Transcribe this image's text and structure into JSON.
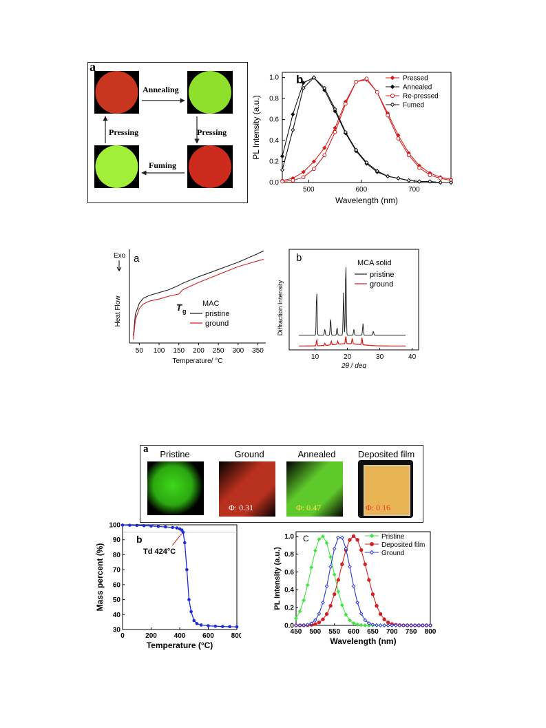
{
  "fig1": {
    "panel_a": {
      "label": "a",
      "arrows": {
        "top": "Annealing",
        "right": "Pressing",
        "bottom": "Fuming",
        "left": "Pressing"
      },
      "colors": {
        "red": "#c8361f",
        "green": "#8fe02a",
        "dark_red": "#cc2a1c",
        "bright_green": "#a2ef3a"
      }
    },
    "panel_b_label": "b"
  },
  "fig2": {
    "panel_a": {
      "label": "a",
      "exo": "Exo",
      "tg_main": "T",
      "tg_sub": "g"
    },
    "panel_b_label": "b"
  },
  "fig3": {
    "panel_a": {
      "label": "a",
      "photos": [
        {
          "title": "Pristine",
          "phi": "",
          "color": "#3fd61a"
        },
        {
          "title": "Ground",
          "phi": "Φ: 0.31",
          "color": "#b8301e"
        },
        {
          "title": "Annealed",
          "phi": "Φ: 0.47",
          "color": "#5fc82a"
        },
        {
          "title": "Deposited film",
          "phi": "Φ: 0.16",
          "color": "#e8b454"
        }
      ]
    },
    "panel_b": {
      "label": "b",
      "annotation": "Td 424°C"
    },
    "panel_c_label": "C"
  },
  "chart_data": [
    {
      "type": "line",
      "xlabel": "Wavelength (nm)",
      "ylabel": "PL Intensity (a.u.)",
      "xlim": [
        450,
        770
      ],
      "ylim": [
        0,
        1.05
      ],
      "xticks": [
        500,
        600,
        700
      ],
      "yticks": [
        0.0,
        0.2,
        0.4,
        0.6,
        0.8,
        1.0
      ],
      "legend_position": "top-right",
      "x": [
        450,
        470,
        490,
        510,
        530,
        550,
        570,
        590,
        610,
        630,
        650,
        670,
        690,
        710,
        730,
        750,
        770
      ],
      "series": [
        {
          "name": "Pressed",
          "color": "#d42020",
          "marker": "filled-diamond",
          "values": [
            0.02,
            0.04,
            0.1,
            0.2,
            0.33,
            0.52,
            0.77,
            0.96,
            0.98,
            0.86,
            0.66,
            0.45,
            0.28,
            0.16,
            0.09,
            0.05,
            0.03
          ]
        },
        {
          "name": "Annealed",
          "color": "#111111",
          "marker": "filled-diamond",
          "values": [
            0.25,
            0.65,
            0.95,
            1.0,
            0.88,
            0.68,
            0.47,
            0.3,
            0.18,
            0.1,
            0.06,
            0.04,
            0.02,
            0.01,
            0.01,
            0.0,
            0.0
          ]
        },
        {
          "name": "Re-pressed",
          "color": "#d42020",
          "marker": "open-circle",
          "values": [
            0.01,
            0.02,
            0.05,
            0.13,
            0.26,
            0.48,
            0.75,
            0.96,
            0.99,
            0.86,
            0.64,
            0.42,
            0.26,
            0.14,
            0.07,
            0.04,
            0.02
          ]
        },
        {
          "name": "Fumed",
          "color": "#111111",
          "marker": "open-diamond",
          "values": [
            0.12,
            0.5,
            0.9,
            1.0,
            0.9,
            0.7,
            0.48,
            0.31,
            0.19,
            0.11,
            0.06,
            0.04,
            0.02,
            0.01,
            0.01,
            0.0,
            0.0
          ]
        }
      ]
    },
    {
      "type": "line",
      "xlabel": "Temperature/ °C",
      "ylabel": "Heat Flow",
      "xlim": [
        25,
        370
      ],
      "xticks": [
        50,
        100,
        150,
        200,
        250,
        300,
        350
      ],
      "legend_title": "MAC",
      "x": [
        35,
        40,
        50,
        60,
        75,
        100,
        125,
        150,
        160,
        200,
        250,
        300,
        350,
        365
      ],
      "series": [
        {
          "name": "pristine",
          "color": "#222222",
          "values": [
            0.0,
            0.3,
            0.45,
            0.52,
            0.56,
            0.6,
            0.64,
            0.7,
            0.73,
            0.82,
            0.92,
            1.02,
            1.14,
            1.18
          ]
        },
        {
          "name": "ground",
          "color": "#d42020",
          "values": [
            -0.05,
            0.22,
            0.38,
            0.44,
            0.48,
            0.51,
            0.55,
            0.58,
            0.64,
            0.74,
            0.85,
            0.96,
            1.04,
            1.06
          ]
        }
      ]
    },
    {
      "type": "line",
      "xlabel": "2θ / deg",
      "ylabel": "Diffraction Intensity",
      "xlim": [
        2,
        42
      ],
      "xticks": [
        10,
        20,
        30,
        40
      ],
      "legend_title": "MCA solid",
      "series": [
        {
          "name": "pristine",
          "color": "#222222",
          "peaks": [
            [
              10.5,
              0.58
            ],
            [
              13.0,
              0.08
            ],
            [
              14.8,
              0.22
            ],
            [
              16.8,
              0.1
            ],
            [
              18.8,
              0.55
            ],
            [
              19.5,
              0.95
            ],
            [
              22.0,
              0.08
            ],
            [
              24.8,
              0.15
            ],
            [
              28.0,
              0.05
            ]
          ]
        },
        {
          "name": "ground",
          "color": "#d42020",
          "peaks": [
            [
              10.5,
              0.08
            ],
            [
              13.0,
              0.03
            ],
            [
              15.0,
              0.05
            ],
            [
              17.0,
              0.04
            ],
            [
              19.5,
              0.1
            ],
            [
              21.5,
              0.07
            ],
            [
              24.5,
              0.09
            ]
          ]
        }
      ]
    },
    {
      "type": "line",
      "xlabel": "Temperature (°C)",
      "ylabel": "Mass percent (%)",
      "xlim": [
        0,
        800
      ],
      "ylim": [
        30,
        100
      ],
      "xticks": [
        0,
        200,
        400,
        600,
        800
      ],
      "yticks": [
        30,
        40,
        50,
        60,
        70,
        80,
        90,
        100
      ],
      "series": [
        {
          "name": "",
          "color": "#1f2bd8",
          "x": [
            0,
            50,
            100,
            150,
            200,
            250,
            300,
            350,
            380,
            400,
            415,
            424,
            435,
            450,
            465,
            480,
            500,
            520,
            550,
            600,
            650,
            700,
            750,
            800
          ],
          "values": [
            99.8,
            99.7,
            99.6,
            99.4,
            99.2,
            98.9,
            98.6,
            98.2,
            97.9,
            97.3,
            96.5,
            95.0,
            88.0,
            70.0,
            50.0,
            42.0,
            36.0,
            34.0,
            33.0,
            32.5,
            32.2,
            32.0,
            31.9,
            31.8
          ]
        }
      ]
    },
    {
      "type": "line",
      "xlabel": "Wavelength (nm)",
      "ylabel": "PL Intensity (a.u.)",
      "xlim": [
        450,
        800
      ],
      "ylim": [
        0,
        1.05
      ],
      "xticks": [
        450,
        500,
        550,
        600,
        650,
        700,
        750,
        800
      ],
      "yticks": [
        0.0,
        0.2,
        0.4,
        0.6,
        0.8,
        1.0
      ],
      "legend_position": "top-right",
      "series": [
        {
          "name": "Pristine",
          "color": "#3ee63e",
          "marker": "diamond",
          "peak": 518,
          "width": 42
        },
        {
          "name": "Deposited film",
          "color": "#d42020",
          "marker": "filled-circle",
          "peak": 600,
          "width": 48
        },
        {
          "name": "Ground",
          "color": "#2a36d8",
          "marker": "open-diamond",
          "peak": 565,
          "width": 38
        }
      ]
    }
  ]
}
